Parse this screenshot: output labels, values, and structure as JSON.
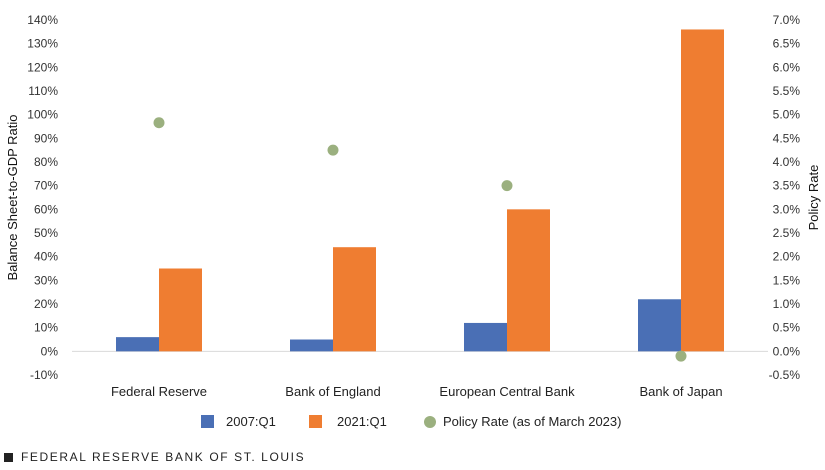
{
  "chart_data": {
    "type": "bar",
    "categories": [
      "Federal Reserve",
      "Bank of England",
      "European Central Bank",
      "Bank of Japan"
    ],
    "series": [
      {
        "name": "2007:Q1",
        "axis": "left",
        "color": "#4a6fb5",
        "values": [
          6,
          5,
          12,
          22
        ]
      },
      {
        "name": "2021:Q1",
        "axis": "left",
        "color": "#ef7d31",
        "values": [
          35,
          44,
          60,
          136
        ]
      }
    ],
    "overlay": {
      "name": "Policy Rate (as of March 2023)",
      "type": "scatter",
      "axis": "right",
      "color": "#9bb07f",
      "values": [
        4.83,
        4.25,
        3.5,
        -0.1
      ]
    },
    "y_left": {
      "label": "Balance Sheet-to-GDP Ratio",
      "min": -10,
      "max": 140,
      "step": 10,
      "unit": "%"
    },
    "y_right": {
      "label": "Policy Rate",
      "min": -0.5,
      "max": 7.0,
      "step": 0.5,
      "unit": "%"
    },
    "grid": false,
    "legend_position": "bottom"
  },
  "footer": {
    "text": "FEDERAL RESERVE BANK OF ST. LOUIS"
  }
}
